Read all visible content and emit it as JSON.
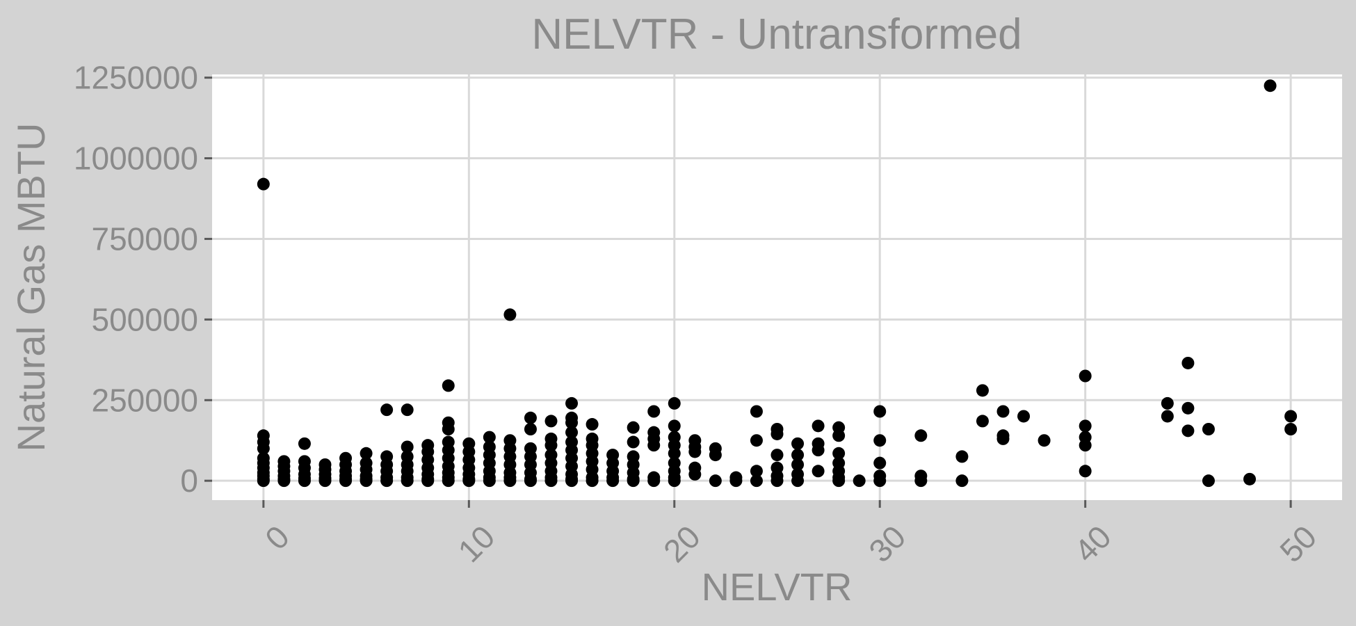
{
  "chart_data": {
    "type": "scatter",
    "title": "NELVTR - Untransformed",
    "xlabel": "NELVTR",
    "ylabel": "Natural Gas MBTU",
    "xlim": [
      -2.5,
      52.5
    ],
    "ylim": [
      -60000,
      1260000
    ],
    "xticks": [
      0,
      10,
      20,
      30,
      40,
      50
    ],
    "yticks": [
      0,
      250000,
      500000,
      750000,
      1000000,
      1250000
    ],
    "xtick_labels": [
      "0",
      "10",
      "20",
      "30",
      "40",
      "50"
    ],
    "ytick_labels": [
      "0",
      "250000",
      "500000",
      "750000",
      "1000000",
      "1250000"
    ],
    "grid": true,
    "background": "#d3d3d3",
    "panel_background": "#ffffff",
    "gridline_color": "#d9d9d9",
    "point_color": "#000000",
    "points": [
      [
        0,
        920000
      ],
      [
        0,
        140000
      ],
      [
        0,
        120000
      ],
      [
        0,
        100000
      ],
      [
        0,
        70000
      ],
      [
        0,
        55000
      ],
      [
        0,
        40000
      ],
      [
        0,
        25000
      ],
      [
        0,
        15000
      ],
      [
        0,
        5000
      ],
      [
        0,
        0
      ],
      [
        1,
        60000
      ],
      [
        1,
        45000
      ],
      [
        1,
        30000
      ],
      [
        1,
        15000
      ],
      [
        1,
        5000
      ],
      [
        1,
        0
      ],
      [
        2,
        115000
      ],
      [
        2,
        60000
      ],
      [
        2,
        40000
      ],
      [
        2,
        20000
      ],
      [
        2,
        8000
      ],
      [
        2,
        0
      ],
      [
        3,
        50000
      ],
      [
        3,
        35000
      ],
      [
        3,
        20000
      ],
      [
        3,
        8000
      ],
      [
        3,
        0
      ],
      [
        4,
        70000
      ],
      [
        4,
        50000
      ],
      [
        4,
        30000
      ],
      [
        4,
        15000
      ],
      [
        4,
        5000
      ],
      [
        4,
        0
      ],
      [
        5,
        85000
      ],
      [
        5,
        55000
      ],
      [
        5,
        35000
      ],
      [
        5,
        15000
      ],
      [
        5,
        5000
      ],
      [
        5,
        0
      ],
      [
        6,
        220000
      ],
      [
        6,
        75000
      ],
      [
        6,
        50000
      ],
      [
        6,
        30000
      ],
      [
        6,
        10000
      ],
      [
        6,
        0
      ],
      [
        7,
        220000
      ],
      [
        7,
        105000
      ],
      [
        7,
        75000
      ],
      [
        7,
        50000
      ],
      [
        7,
        30000
      ],
      [
        7,
        10000
      ],
      [
        7,
        0
      ],
      [
        8,
        110000
      ],
      [
        8,
        90000
      ],
      [
        8,
        65000
      ],
      [
        8,
        40000
      ],
      [
        8,
        20000
      ],
      [
        8,
        5000
      ],
      [
        8,
        0
      ],
      [
        9,
        295000
      ],
      [
        9,
        180000
      ],
      [
        9,
        160000
      ],
      [
        9,
        120000
      ],
      [
        9,
        95000
      ],
      [
        9,
        70000
      ],
      [
        9,
        45000
      ],
      [
        9,
        25000
      ],
      [
        9,
        10000
      ],
      [
        9,
        0
      ],
      [
        10,
        115000
      ],
      [
        10,
        90000
      ],
      [
        10,
        65000
      ],
      [
        10,
        40000
      ],
      [
        10,
        20000
      ],
      [
        10,
        5000
      ],
      [
        10,
        0
      ],
      [
        11,
        135000
      ],
      [
        11,
        105000
      ],
      [
        11,
        80000
      ],
      [
        11,
        55000
      ],
      [
        11,
        30000
      ],
      [
        11,
        10000
      ],
      [
        11,
        0
      ],
      [
        12,
        515000
      ],
      [
        12,
        125000
      ],
      [
        12,
        100000
      ],
      [
        12,
        75000
      ],
      [
        12,
        50000
      ],
      [
        12,
        25000
      ],
      [
        12,
        10000
      ],
      [
        12,
        0
      ],
      [
        13,
        195000
      ],
      [
        13,
        160000
      ],
      [
        13,
        100000
      ],
      [
        13,
        75000
      ],
      [
        13,
        50000
      ],
      [
        13,
        25000
      ],
      [
        13,
        5000
      ],
      [
        13,
        0
      ],
      [
        14,
        185000
      ],
      [
        14,
        130000
      ],
      [
        14,
        110000
      ],
      [
        14,
        80000
      ],
      [
        14,
        55000
      ],
      [
        14,
        30000
      ],
      [
        14,
        10000
      ],
      [
        14,
        0
      ],
      [
        15,
        240000
      ],
      [
        15,
        195000
      ],
      [
        15,
        180000
      ],
      [
        15,
        150000
      ],
      [
        15,
        120000
      ],
      [
        15,
        95000
      ],
      [
        15,
        70000
      ],
      [
        15,
        45000
      ],
      [
        15,
        20000
      ],
      [
        15,
        5000
      ],
      [
        15,
        0
      ],
      [
        16,
        175000
      ],
      [
        16,
        130000
      ],
      [
        16,
        110000
      ],
      [
        16,
        85000
      ],
      [
        16,
        60000
      ],
      [
        16,
        35000
      ],
      [
        16,
        10000
      ],
      [
        16,
        0
      ],
      [
        17,
        80000
      ],
      [
        17,
        55000
      ],
      [
        17,
        30000
      ],
      [
        17,
        10000
      ],
      [
        17,
        0
      ],
      [
        18,
        165000
      ],
      [
        18,
        120000
      ],
      [
        18,
        75000
      ],
      [
        18,
        50000
      ],
      [
        18,
        25000
      ],
      [
        18,
        5000
      ],
      [
        18,
        0
      ],
      [
        19,
        215000
      ],
      [
        19,
        150000
      ],
      [
        19,
        130000
      ],
      [
        19,
        110000
      ],
      [
        19,
        10000
      ],
      [
        19,
        0
      ],
      [
        20,
        240000
      ],
      [
        20,
        170000
      ],
      [
        20,
        135000
      ],
      [
        20,
        110000
      ],
      [
        20,
        85000
      ],
      [
        20,
        55000
      ],
      [
        20,
        30000
      ],
      [
        20,
        10000
      ],
      [
        20,
        0
      ],
      [
        21,
        125000
      ],
      [
        21,
        105000
      ],
      [
        21,
        90000
      ],
      [
        21,
        40000
      ],
      [
        21,
        20000
      ],
      [
        22,
        100000
      ],
      [
        22,
        80000
      ],
      [
        22,
        0
      ],
      [
        23,
        10000
      ],
      [
        23,
        0
      ],
      [
        24,
        215000
      ],
      [
        24,
        125000
      ],
      [
        24,
        30000
      ],
      [
        24,
        0
      ],
      [
        25,
        160000
      ],
      [
        25,
        145000
      ],
      [
        25,
        80000
      ],
      [
        25,
        40000
      ],
      [
        25,
        15000
      ],
      [
        25,
        0
      ],
      [
        26,
        115000
      ],
      [
        26,
        80000
      ],
      [
        26,
        50000
      ],
      [
        26,
        20000
      ],
      [
        26,
        0
      ],
      [
        27,
        170000
      ],
      [
        27,
        115000
      ],
      [
        27,
        95000
      ],
      [
        27,
        30000
      ],
      [
        28,
        165000
      ],
      [
        28,
        140000
      ],
      [
        28,
        85000
      ],
      [
        28,
        55000
      ],
      [
        28,
        30000
      ],
      [
        28,
        10000
      ],
      [
        28,
        0
      ],
      [
        29,
        0
      ],
      [
        30,
        215000
      ],
      [
        30,
        125000
      ],
      [
        30,
        55000
      ],
      [
        30,
        15000
      ],
      [
        30,
        0
      ],
      [
        32,
        140000
      ],
      [
        32,
        15000
      ],
      [
        32,
        0
      ],
      [
        34,
        75000
      ],
      [
        34,
        0
      ],
      [
        35,
        280000
      ],
      [
        35,
        185000
      ],
      [
        36,
        215000
      ],
      [
        36,
        140000
      ],
      [
        36,
        130000
      ],
      [
        37,
        200000
      ],
      [
        38,
        125000
      ],
      [
        40,
        325000
      ],
      [
        40,
        170000
      ],
      [
        40,
        135000
      ],
      [
        40,
        110000
      ],
      [
        40,
        30000
      ],
      [
        44,
        240000
      ],
      [
        44,
        200000
      ],
      [
        45,
        365000
      ],
      [
        45,
        225000
      ],
      [
        45,
        155000
      ],
      [
        46,
        160000
      ],
      [
        46,
        0
      ],
      [
        48,
        5000
      ],
      [
        49,
        1225000
      ],
      [
        50,
        200000
      ],
      [
        50,
        160000
      ]
    ]
  }
}
